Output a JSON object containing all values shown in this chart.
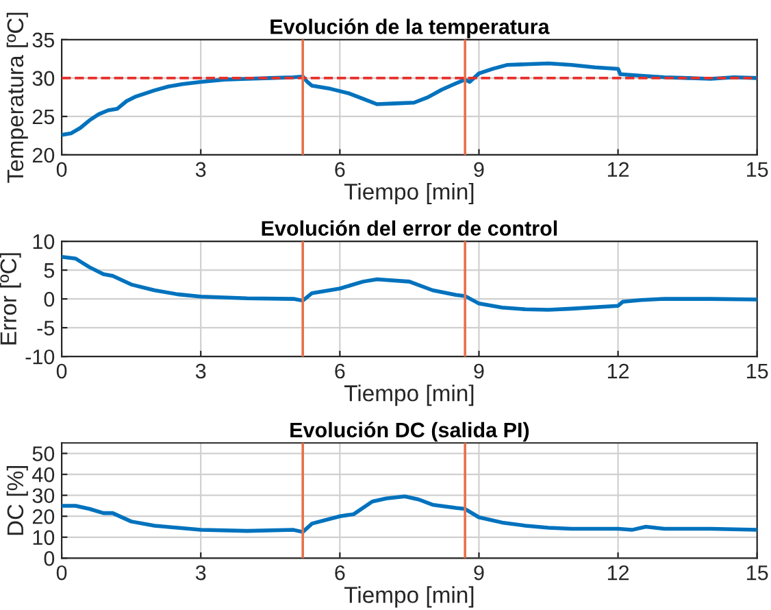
{
  "chart_data": [
    {
      "type": "line",
      "title": "Evolución de la temperatura",
      "xlabel": "Tiempo [min]",
      "ylabel": "Temperatura [ºC]",
      "xlim": [
        0,
        15
      ],
      "xticks": [
        0,
        3,
        6,
        9,
        12,
        15
      ],
      "ylim": [
        20,
        35
      ],
      "yticks": [
        20,
        25,
        30,
        35
      ],
      "grid": true,
      "series": [
        {
          "color": "#0072bd",
          "x": [
            0,
            0.2,
            0.4,
            0.6,
            0.8,
            1.0,
            1.2,
            1.4,
            1.6,
            1.8,
            2.0,
            2.3,
            2.6,
            3.0,
            3.5,
            4.0,
            4.5,
            5.0,
            5.2,
            5.3,
            5.4,
            5.8,
            6.2,
            6.5,
            6.8,
            7.2,
            7.6,
            7.9,
            8.2,
            8.5,
            8.7,
            8.8,
            9.0,
            9.3,
            9.6,
            10.0,
            10.5,
            11.0,
            11.5,
            12.0,
            12.05,
            12.5,
            13.0,
            13.5,
            14.0,
            14.5,
            15.0
          ],
          "values": [
            22.6,
            22.8,
            23.5,
            24.5,
            25.3,
            25.8,
            26.0,
            27.0,
            27.6,
            28.0,
            28.4,
            28.9,
            29.2,
            29.5,
            29.8,
            29.9,
            30.0,
            30.1,
            30.2,
            29.5,
            29.0,
            28.6,
            28.0,
            27.3,
            26.6,
            26.7,
            26.8,
            27.5,
            28.5,
            29.3,
            29.8,
            29.5,
            30.6,
            31.2,
            31.7,
            31.8,
            31.9,
            31.7,
            31.4,
            31.2,
            30.5,
            30.3,
            30.1,
            30.0,
            29.9,
            30.1,
            30.0
          ]
        }
      ],
      "ref_lines": [
        {
          "axis": "y",
          "value": 30,
          "color": "#e8302a",
          "line_style": "dashed"
        },
        {
          "axis": "x",
          "value": 5.2,
          "color": "#e8704a",
          "line_style": "solid"
        },
        {
          "axis": "x",
          "value": 8.7,
          "color": "#e8704a",
          "line_style": "solid"
        }
      ]
    },
    {
      "type": "line",
      "title": "Evolución del error de control",
      "xlabel": "Tiempo [min]",
      "ylabel": "Error [ºC]",
      "xlim": [
        0,
        15
      ],
      "xticks": [
        0,
        3,
        6,
        9,
        12,
        15
      ],
      "ylim": [
        -10,
        10
      ],
      "yticks": [
        -10,
        -5,
        0,
        5,
        10
      ],
      "grid": true,
      "series": [
        {
          "color": "#0072bd",
          "x": [
            0,
            0.3,
            0.6,
            0.9,
            1.1,
            1.5,
            2.0,
            2.5,
            3.0,
            4.0,
            5.0,
            5.2,
            5.4,
            6.0,
            6.5,
            6.8,
            7.5,
            8.0,
            8.5,
            8.7,
            9.0,
            9.5,
            10.0,
            10.5,
            11.0,
            12.0,
            12.1,
            12.5,
            13.0,
            14.0,
            15.0
          ],
          "values": [
            7.3,
            7.0,
            5.5,
            4.3,
            4.0,
            2.5,
            1.5,
            0.8,
            0.4,
            0.1,
            0.0,
            -0.3,
            1.0,
            1.8,
            3.0,
            3.4,
            3.0,
            1.5,
            0.7,
            0.5,
            -0.8,
            -1.5,
            -1.8,
            -1.9,
            -1.7,
            -1.2,
            -0.5,
            -0.2,
            0.0,
            0.0,
            -0.1
          ]
        }
      ],
      "ref_lines": [
        {
          "axis": "x",
          "value": 5.2,
          "color": "#e8704a",
          "line_style": "solid"
        },
        {
          "axis": "x",
          "value": 8.7,
          "color": "#e8704a",
          "line_style": "solid"
        }
      ]
    },
    {
      "type": "line",
      "title": "Evolución DC (salida PI)",
      "xlabel": "Tiempo [min]",
      "ylabel": "DC [%]",
      "xlim": [
        0,
        15
      ],
      "xticks": [
        0,
        3,
        6,
        9,
        12,
        15
      ],
      "ylim": [
        0,
        55
      ],
      "yticks": [
        0,
        10,
        20,
        30,
        40,
        50
      ],
      "grid": true,
      "series": [
        {
          "color": "#0072bd",
          "x": [
            0,
            0.3,
            0.6,
            0.9,
            1.1,
            1.5,
            2.0,
            2.5,
            3.0,
            4.0,
            5.0,
            5.2,
            5.4,
            6.0,
            6.3,
            6.7,
            7.0,
            7.4,
            7.7,
            8.0,
            8.5,
            8.7,
            9.0,
            9.5,
            10.0,
            10.5,
            11.0,
            12.0,
            12.3,
            12.6,
            13.0,
            14.0,
            15.0
          ],
          "values": [
            25,
            25,
            23.5,
            21.5,
            21.5,
            17.5,
            15.5,
            14.5,
            13.5,
            13.0,
            13.5,
            12.5,
            16.5,
            20.0,
            21.0,
            27.0,
            28.5,
            29.5,
            28.0,
            25.5,
            24.0,
            23.5,
            19.5,
            17.0,
            15.5,
            14.5,
            14.0,
            14.0,
            13.5,
            15.0,
            14.0,
            14.0,
            13.5
          ]
        }
      ],
      "ref_lines": [
        {
          "axis": "x",
          "value": 5.2,
          "color": "#e8704a",
          "line_style": "solid"
        },
        {
          "axis": "x",
          "value": 8.7,
          "color": "#e8704a",
          "line_style": "solid"
        }
      ]
    }
  ]
}
